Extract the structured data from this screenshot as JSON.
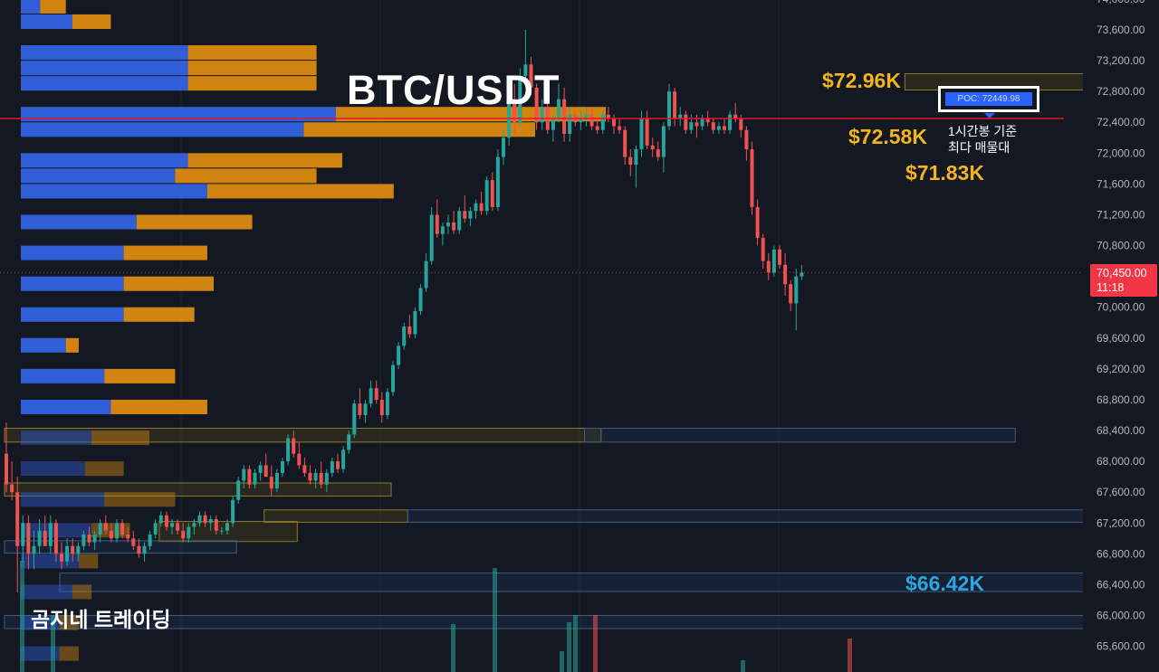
{
  "chart_data": {
    "type": "candlestick",
    "title": "BTC/USDT",
    "watermark": "곰지네 트레이딩",
    "y_axis": {
      "ticks": [
        "74,000.00",
        "73,600.00",
        "73,200.00",
        "72,800.00",
        "72,400.00",
        "72,000.00",
        "71,600.00",
        "71,200.00",
        "70,800.00",
        "70,400.00",
        "70,000.00",
        "69,600.00",
        "69,200.00",
        "68,800.00",
        "68,400.00",
        "68,000.00",
        "67,600.00",
        "67,200.00",
        "66,800.00",
        "66,400.00",
        "66,000.00",
        "65,600.00"
      ],
      "range": [
        65400,
        74100
      ]
    },
    "current_price": {
      "value_label": "70,450.00",
      "countdown": "11:18",
      "value": 70450,
      "color": "#f23645"
    },
    "poc": {
      "label": "POC: 72449.98",
      "value": 72449.98,
      "note": "1시간봉 기준\n최다 매물대",
      "line_color": "#e0192b"
    },
    "level_labels": [
      {
        "text": "$72.96K",
        "value": 72960,
        "color": "#f2b51d"
      },
      {
        "text": "$72.58K",
        "value": 72580,
        "color": "#f2b51d"
      },
      {
        "text": "$71.83K",
        "value": 71830,
        "color": "#f2b51d"
      },
      {
        "text": "$66.42K",
        "value": 66420,
        "color": "#2aa6e0"
      }
    ],
    "zones": [
      {
        "kind": "supply",
        "top": 73030,
        "bottom": 72820,
        "from": 163,
        "to": 242
      },
      {
        "kind": "supply",
        "top": 72680,
        "bottom": 72480,
        "from": 201,
        "to": 242
      },
      {
        "kind": "supply",
        "top": 71950,
        "bottom": 71760,
        "from": 197,
        "to": 242
      },
      {
        "kind": "demand",
        "top": 71950,
        "bottom": 71760,
        "from": 197,
        "to": 220
      },
      {
        "kind": "supply",
        "top": 68430,
        "bottom": 68250,
        "from": 0,
        "to": 108
      },
      {
        "kind": "demand",
        "top": 68430,
        "bottom": 68250,
        "from": 105,
        "to": 183
      },
      {
        "kind": "supply",
        "top": 67720,
        "bottom": 67550,
        "from": 0,
        "to": 70
      },
      {
        "kind": "supply",
        "top": 67370,
        "bottom": 67210,
        "from": 47,
        "to": 73
      },
      {
        "kind": "demand",
        "top": 67370,
        "bottom": 67210,
        "from": 73,
        "to": 225
      },
      {
        "kind": "supply",
        "top": 67220,
        "bottom": 66960,
        "from": 28,
        "to": 53
      },
      {
        "kind": "demand",
        "top": 66970,
        "bottom": 66810,
        "from": 0,
        "to": 42
      },
      {
        "kind": "demand",
        "top": 66550,
        "bottom": 66310,
        "from": 10,
        "to": 245
      },
      {
        "kind": "demand",
        "top": 66000,
        "bottom": 65830,
        "from": 0,
        "to": 212
      }
    ],
    "volume_profile": {
      "bin_size": 200,
      "bins": [
        {
          "price": 73800,
          "buy": 3,
          "sell": 4
        },
        {
          "price": 73600,
          "buy": 8,
          "sell": 6
        },
        {
          "price": 73200,
          "buy": 26,
          "sell": 20
        },
        {
          "price": 73000,
          "buy": 26,
          "sell": 20
        },
        {
          "price": 72800,
          "buy": 26,
          "sell": 20
        },
        {
          "price": 72400,
          "buy": 49,
          "sell": 42
        },
        {
          "price": 72200,
          "buy": 44,
          "sell": 36
        },
        {
          "price": 71800,
          "buy": 26,
          "sell": 24
        },
        {
          "price": 71600,
          "buy": 24,
          "sell": 22
        },
        {
          "price": 71400,
          "buy": 29,
          "sell": 29
        },
        {
          "price": 71000,
          "buy": 18,
          "sell": 18
        },
        {
          "price": 70600,
          "buy": 16,
          "sell": 13
        },
        {
          "price": 70200,
          "buy": 16,
          "sell": 14
        },
        {
          "price": 69800,
          "buy": 16,
          "sell": 11
        },
        {
          "price": 69400,
          "buy": 7,
          "sell": 2
        },
        {
          "price": 69000,
          "buy": 13,
          "sell": 11
        },
        {
          "price": 68600,
          "buy": 14,
          "sell": 15
        },
        {
          "price": 68200,
          "buy": 11,
          "sell": 9
        },
        {
          "price": 67800,
          "buy": 10,
          "sell": 6
        },
        {
          "price": 67400,
          "buy": 13,
          "sell": 11
        },
        {
          "price": 67000,
          "buy": 11,
          "sell": 6
        },
        {
          "price": 66600,
          "buy": 9,
          "sell": 3
        },
        {
          "price": 66200,
          "buy": 8,
          "sell": 3
        },
        {
          "price": 65800,
          "buy": 6,
          "sell": 3
        },
        {
          "price": 65400,
          "buy": 6,
          "sell": 3
        }
      ]
    },
    "candles": [
      [
        68100,
        68500,
        67600,
        67700
      ],
      [
        67700,
        68000,
        67500,
        67600
      ],
      [
        67600,
        67800,
        66300,
        66900
      ],
      [
        66900,
        67300,
        66700,
        67200
      ],
      [
        67200,
        67300,
        66600,
        66800
      ],
      [
        66800,
        67100,
        66600,
        66900
      ],
      [
        66900,
        67250,
        66800,
        67100
      ],
      [
        67100,
        67300,
        66900,
        66900
      ],
      [
        66900,
        67300,
        66800,
        67200
      ],
      [
        67200,
        67250,
        66700,
        66800
      ],
      [
        66800,
        66950,
        66600,
        66700
      ],
      [
        66700,
        67000,
        66650,
        66900
      ],
      [
        66900,
        67000,
        66700,
        66800
      ],
      [
        66800,
        66950,
        66700,
        66900
      ],
      [
        66900,
        67100,
        66850,
        67050
      ],
      [
        67050,
        67150,
        66900,
        66950
      ],
      [
        66950,
        67100,
        66850,
        67050
      ],
      [
        67050,
        67250,
        66950,
        67200
      ],
      [
        67200,
        67300,
        67050,
        67100
      ],
      [
        67100,
        67200,
        66950,
        67000
      ],
      [
        67000,
        67250,
        66950,
        67200
      ],
      [
        67200,
        67250,
        67000,
        67050
      ],
      [
        67050,
        67150,
        66950,
        67000
      ],
      [
        67000,
        67100,
        66850,
        66900
      ],
      [
        66900,
        67000,
        66750,
        66800
      ],
      [
        66800,
        66950,
        66700,
        66900
      ],
      [
        66900,
        67100,
        66850,
        67050
      ],
      [
        67050,
        67250,
        67000,
        67200
      ],
      [
        67200,
        67350,
        67150,
        67300
      ],
      [
        67300,
        67350,
        67100,
        67150
      ],
      [
        67150,
        67250,
        67050,
        67200
      ],
      [
        67200,
        67250,
        67050,
        67100
      ],
      [
        67100,
        67200,
        66950,
        67000
      ],
      [
        67000,
        67200,
        66950,
        67150
      ],
      [
        67150,
        67250,
        67050,
        67200
      ],
      [
        67200,
        67350,
        67150,
        67300
      ],
      [
        67300,
        67350,
        67150,
        67200
      ],
      [
        67200,
        67300,
        67100,
        67250
      ],
      [
        67250,
        67300,
        67050,
        67100
      ],
      [
        67100,
        67150,
        67050,
        67100
      ],
      [
        67100,
        67250,
        67050,
        67200
      ],
      [
        67200,
        67550,
        67150,
        67500
      ],
      [
        67500,
        67800,
        67450,
        67750
      ],
      [
        67750,
        67950,
        67650,
        67900
      ],
      [
        67900,
        67950,
        67650,
        67700
      ],
      [
        67700,
        67900,
        67650,
        67850
      ],
      [
        67850,
        68000,
        67750,
        67950
      ],
      [
        67950,
        68100,
        67850,
        67800
      ],
      [
        67800,
        67950,
        67550,
        67650
      ],
      [
        67650,
        67900,
        67600,
        67850
      ],
      [
        67850,
        68050,
        67800,
        68000
      ],
      [
        68000,
        68350,
        67950,
        68300
      ],
      [
        68300,
        68400,
        68050,
        68100
      ],
      [
        68100,
        68250,
        67900,
        67950
      ],
      [
        67950,
        68050,
        67800,
        67850
      ],
      [
        67850,
        67950,
        67700,
        67750
      ],
      [
        67750,
        67900,
        67650,
        67850
      ],
      [
        67850,
        68000,
        67650,
        67700
      ],
      [
        67700,
        67900,
        67600,
        67850
      ],
      [
        67850,
        68050,
        67800,
        68000
      ],
      [
        68000,
        68100,
        67850,
        67900
      ],
      [
        67900,
        68200,
        67850,
        68150
      ],
      [
        68150,
        68400,
        68100,
        68350
      ],
      [
        68350,
        68800,
        68300,
        68750
      ],
      [
        68750,
        68950,
        68550,
        68600
      ],
      [
        68600,
        68800,
        68500,
        68750
      ],
      [
        68750,
        69050,
        68700,
        68950
      ],
      [
        68950,
        69050,
        68750,
        68800
      ],
      [
        68800,
        68900,
        68500,
        68600
      ],
      [
        68600,
        68950,
        68550,
        68900
      ],
      [
        68900,
        69300,
        68850,
        69250
      ],
      [
        69250,
        69550,
        69200,
        69500
      ],
      [
        69500,
        69800,
        69450,
        69750
      ],
      [
        69750,
        69900,
        69600,
        69650
      ],
      [
        69650,
        70000,
        69600,
        69950
      ],
      [
        69950,
        70300,
        69900,
        70250
      ],
      [
        70250,
        70700,
        70200,
        70600
      ],
      [
        70600,
        71300,
        70550,
        71200
      ],
      [
        71200,
        71400,
        70900,
        70950
      ],
      [
        70950,
        71100,
        70800,
        71050
      ],
      [
        71050,
        71200,
        70950,
        71100
      ],
      [
        71100,
        71250,
        70950,
        71000
      ],
      [
        71000,
        71300,
        70950,
        71250
      ],
      [
        71250,
        71450,
        71100,
        71150
      ],
      [
        71150,
        71300,
        71050,
        71250
      ],
      [
        71250,
        71400,
        71150,
        71350
      ],
      [
        71350,
        71500,
        71200,
        71250
      ],
      [
        71250,
        71700,
        71200,
        71650
      ],
      [
        71650,
        71750,
        71250,
        71300
      ],
      [
        71300,
        72050,
        71250,
        71950
      ],
      [
        71950,
        72300,
        71850,
        72200
      ],
      [
        72200,
        72900,
        72100,
        72700
      ],
      [
        72700,
        72900,
        72250,
        72400
      ],
      [
        72400,
        73100,
        72350,
        73000
      ],
      [
        73000,
        73600,
        72900,
        73150
      ],
      [
        73150,
        73250,
        72750,
        72850
      ],
      [
        72850,
        72900,
        72300,
        72400
      ],
      [
        72400,
        72700,
        72300,
        72600
      ],
      [
        72600,
        72700,
        72250,
        72300
      ],
      [
        72300,
        72500,
        72150,
        72450
      ],
      [
        72450,
        72900,
        72400,
        72700
      ],
      [
        72700,
        72850,
        72150,
        72250
      ],
      [
        72250,
        72600,
        72150,
        72500
      ],
      [
        72500,
        72550,
        72350,
        72400
      ],
      [
        72400,
        72550,
        72300,
        72450
      ],
      [
        72450,
        72600,
        72350,
        72500
      ],
      [
        72500,
        72600,
        72300,
        72350
      ],
      [
        72350,
        72450,
        72250,
        72300
      ],
      [
        72300,
        72550,
        72250,
        72500
      ],
      [
        72500,
        72600,
        72400,
        72450
      ],
      [
        72450,
        72500,
        72250,
        72350
      ],
      [
        72350,
        72450,
        72250,
        72300
      ],
      [
        72300,
        72350,
        71850,
        71950
      ],
      [
        71950,
        72050,
        71700,
        71850
      ],
      [
        71850,
        72100,
        71550,
        72050
      ],
      [
        72050,
        72550,
        71950,
        72450
      ],
      [
        72450,
        72550,
        72050,
        72100
      ],
      [
        72100,
        72200,
        71950,
        72050
      ],
      [
        72050,
        72150,
        71900,
        71950
      ],
      [
        71950,
        72400,
        71750,
        72350
      ],
      [
        72350,
        72900,
        72300,
        72800
      ],
      [
        72800,
        72850,
        72350,
        72450
      ],
      [
        72450,
        72600,
        72350,
        72500
      ],
      [
        72500,
        72550,
        72250,
        72300
      ],
      [
        72300,
        72500,
        72250,
        72400
      ],
      [
        72400,
        72500,
        72200,
        72350
      ],
      [
        72350,
        72500,
        72300,
        72450
      ],
      [
        72450,
        72550,
        72350,
        72400
      ],
      [
        72400,
        72450,
        72250,
        72300
      ],
      [
        72300,
        72400,
        72250,
        72350
      ],
      [
        72350,
        72450,
        72250,
        72300
      ],
      [
        72300,
        72550,
        72250,
        72500
      ],
      [
        72500,
        72650,
        72400,
        72450
      ],
      [
        72450,
        72500,
        72200,
        72300
      ],
      [
        72300,
        72350,
        71900,
        72050
      ],
      [
        72050,
        72150,
        71200,
        71300
      ],
      [
        71300,
        71400,
        70800,
        70900
      ],
      [
        70900,
        70950,
        70500,
        70600
      ],
      [
        70600,
        70700,
        70350,
        70450
      ],
      [
        70450,
        70800,
        70400,
        70750
      ],
      [
        70750,
        70800,
        70500,
        70550
      ],
      [
        70550,
        70700,
        70150,
        70300
      ],
      [
        70300,
        70350,
        69950,
        70050
      ],
      [
        70050,
        70500,
        69700,
        70400
      ],
      [
        70400,
        70550,
        70350,
        70450
      ]
    ],
    "volumes": [
      {
        "from_top": 700,
        "dir": "up"
      },
      {
        "from_top": 630,
        "dir": "up"
      }
    ]
  }
}
